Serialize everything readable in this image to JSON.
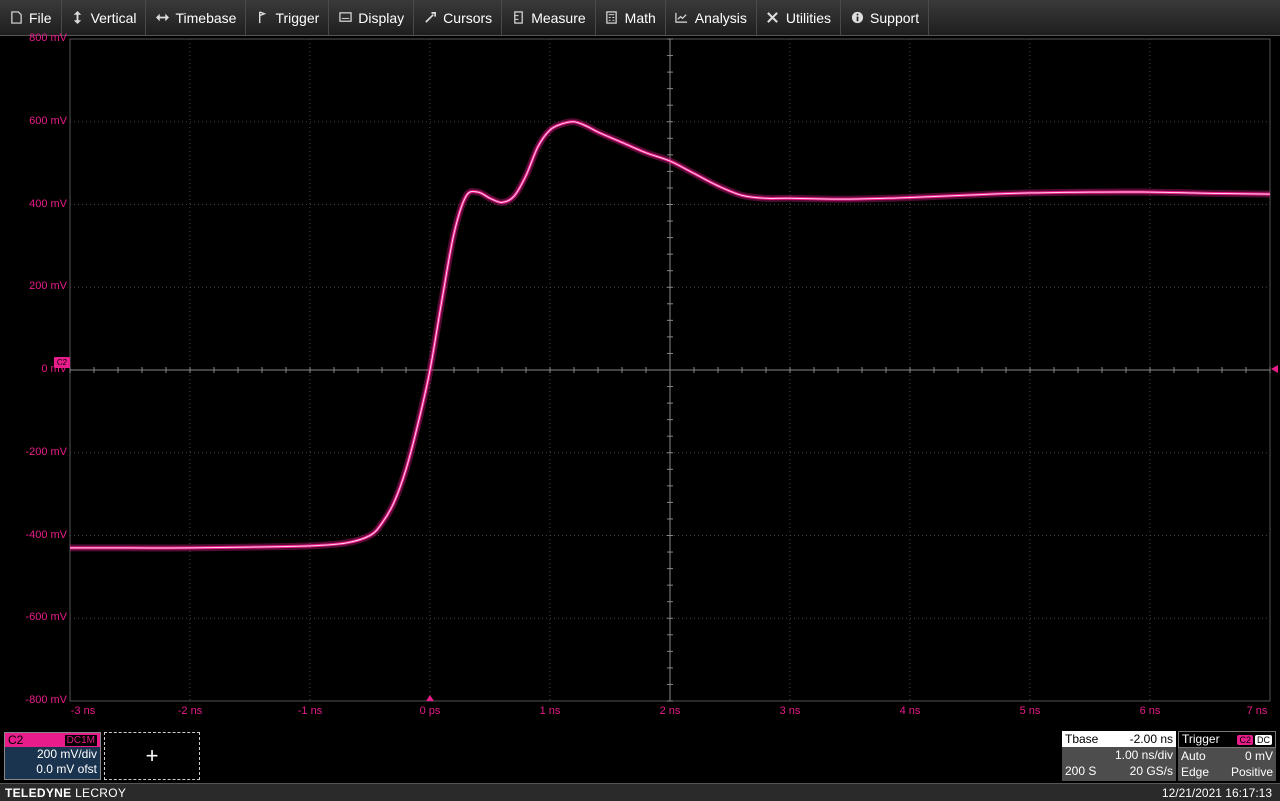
{
  "menu": [
    {
      "label": "File",
      "icon": "file-icon"
    },
    {
      "label": "Vertical",
      "icon": "vertical-arrows-icon"
    },
    {
      "label": "Timebase",
      "icon": "horizontal-arrows-icon"
    },
    {
      "label": "Trigger",
      "icon": "trigger-flag-icon"
    },
    {
      "label": "Display",
      "icon": "display-icon"
    },
    {
      "label": "Cursors",
      "icon": "cursor-icon"
    },
    {
      "label": "Measure",
      "icon": "measure-icon"
    },
    {
      "label": "Math",
      "icon": "calculator-icon"
    },
    {
      "label": "Analysis",
      "icon": "analysis-chart-icon"
    },
    {
      "label": "Utilities",
      "icon": "tools-icon"
    },
    {
      "label": "Support",
      "icon": "info-icon"
    }
  ],
  "channel": {
    "name": "C2",
    "coupling": "DC1M",
    "scale": "200 mV/div",
    "offset": "0.0 mV ofst",
    "color": "#e81c8a",
    "marker": "C2"
  },
  "add_button": "+",
  "timebase": {
    "label": "Tbase",
    "delay": "-2.00 ns",
    "scale": "1.00 ns/div",
    "samples": "200 S",
    "rate": "20 GS/s"
  },
  "trigger": {
    "label": "Trigger",
    "source": "C2",
    "coupling": "DC",
    "mode": "Auto",
    "level": "0 mV",
    "type": "Edge",
    "slope": "Positive"
  },
  "status": {
    "brand_bold": "TELEDYNE",
    "brand_light": "LECROY",
    "datetime": "12/21/2021 16:17:13"
  },
  "chart_data": {
    "type": "line",
    "title": "",
    "xlabel": "",
    "ylabel": "",
    "xlim": [
      -3,
      7
    ],
    "ylim": [
      -800,
      800
    ],
    "x_ticks": [
      "-3 ns",
      "-2 ns",
      "-1 ns",
      "0 ps",
      "1 ns",
      "2 ns",
      "3 ns",
      "4 ns",
      "5 ns",
      "6 ns",
      "7 ns"
    ],
    "y_ticks": [
      "800 mV",
      "600 mV",
      "400 mV",
      "200 mV",
      "0 mV",
      "-200 mV",
      "-400 mV",
      "-600 mV",
      "-800 mV"
    ],
    "grid": true,
    "series": [
      {
        "color": "#e81c8a",
        "x": [
          -3,
          -2.5,
          -2,
          -1.5,
          -1,
          -0.7,
          -0.5,
          -0.4,
          -0.3,
          -0.2,
          -0.1,
          0,
          0.1,
          0.2,
          0.3,
          0.4,
          0.5,
          0.6,
          0.7,
          0.8,
          0.9,
          1.0,
          1.1,
          1.2,
          1.3,
          1.4,
          1.6,
          1.8,
          2.0,
          2.2,
          2.4,
          2.6,
          2.8,
          3.0,
          3.5,
          4.0,
          4.5,
          5.0,
          5.5,
          6.0,
          6.5,
          7.0
        ],
        "y": [
          -430,
          -430,
          -430,
          -428,
          -425,
          -418,
          -400,
          -370,
          -320,
          -240,
          -130,
          0,
          170,
          330,
          420,
          430,
          415,
          405,
          420,
          470,
          540,
          580,
          595,
          600,
          590,
          575,
          550,
          525,
          505,
          475,
          445,
          422,
          415,
          415,
          413,
          417,
          423,
          428,
          430,
          430,
          427,
          425
        ]
      }
    ]
  }
}
